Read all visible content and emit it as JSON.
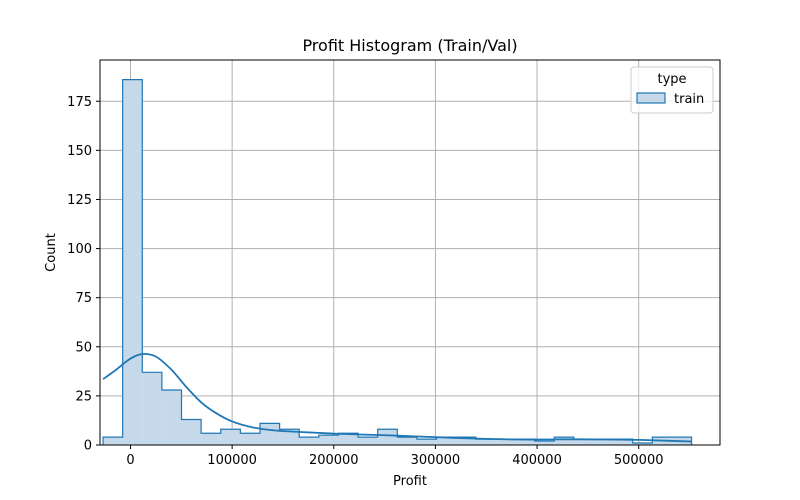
{
  "chart_data": {
    "type": "histogram",
    "title": "Profit Histogram (Train/Val)",
    "xlabel": "Profit",
    "ylabel": "Count",
    "xlim": [
      -30000,
      580000
    ],
    "ylim": [
      0,
      196
    ],
    "x_ticks": [
      0,
      100000,
      200000,
      300000,
      400000,
      500000
    ],
    "y_ticks": [
      0,
      25,
      50,
      75,
      100,
      125,
      150,
      175
    ],
    "grid": true,
    "legend": {
      "title": "type",
      "placement": "top-right",
      "entries": [
        "train"
      ]
    },
    "colors": {
      "edge": "#1f77b4",
      "fill": "#c5d9ea",
      "grid": "#b0b0b0"
    },
    "bins": {
      "edges": [
        -27000,
        -7700,
        11600,
        30900,
        50200,
        69500,
        88800,
        108100,
        127400,
        146700,
        166000,
        185300,
        204600,
        223900,
        243200,
        262500,
        281800,
        301100,
        320400,
        339700,
        359000,
        378300,
        397600,
        416900,
        436200,
        455500,
        474800,
        494100,
        513400,
        532700,
        552000
      ],
      "counts": [
        4,
        186,
        37,
        28,
        13,
        6,
        8,
        6,
        11,
        8,
        4,
        5,
        6,
        4,
        8,
        4,
        3,
        4,
        4,
        3,
        3,
        3,
        2,
        4,
        3,
        3,
        3,
        1,
        4,
        4
      ]
    },
    "series": [
      {
        "name": "train",
        "kde": {
          "x": [
            -27000,
            -15000,
            0,
            12000,
            25000,
            40000,
            55000,
            70000,
            85000,
            100000,
            120000,
            140000,
            160000,
            180000,
            200000,
            230000,
            260000,
            290000,
            320000,
            350000,
            380000,
            410000,
            440000,
            470000,
            500000,
            520000,
            552000
          ],
          "y": [
            33.5,
            38,
            44,
            46.3,
            45,
            38.5,
            29.5,
            21.5,
            16,
            12,
            9,
            7.5,
            6.8,
            6.3,
            5.8,
            5.3,
            4.8,
            4.2,
            3.6,
            3.1,
            2.8,
            2.8,
            2.9,
            2.8,
            2.6,
            2.3,
            1.8
          ]
        }
      }
    ]
  }
}
